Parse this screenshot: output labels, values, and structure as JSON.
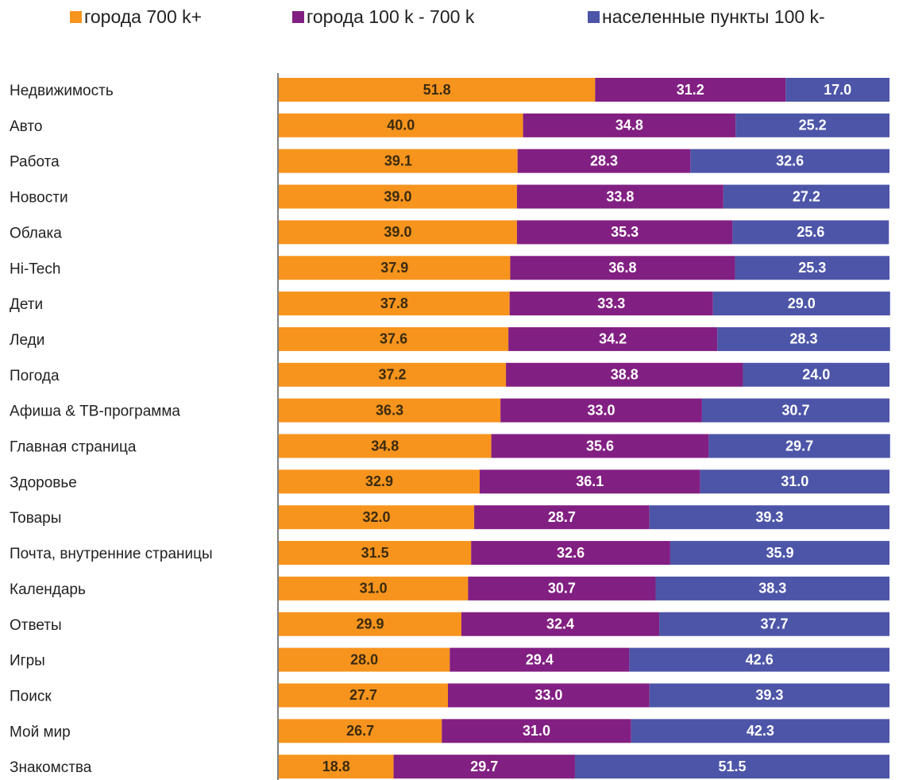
{
  "chart_data": {
    "type": "stacked-barh",
    "categories": [
      "Недвижимость",
      "Авто",
      "Работа",
      "Новости",
      "Облака",
      "Hi-Tech",
      "Дети",
      "Леди",
      "Погода",
      "Афиша & ТВ-программа",
      "Главная страница",
      "Здоровье",
      "Товары",
      "Почта, внутренние страницы",
      "Календарь",
      "Ответы",
      "Игры",
      "Поиск",
      "Мой мир",
      "Знакомства"
    ],
    "series": [
      {
        "name": "города 700 k+",
        "color": "#f7941d",
        "label_color": "#3b2b10",
        "values": [
          51.8,
          40,
          39.1,
          39,
          39,
          37.9,
          37.8,
          37.6,
          37.2,
          36.3,
          34.8,
          32.9,
          32,
          31.5,
          31,
          29.9,
          28,
          27.7,
          26.7,
          18.8
        ],
        "value_labels": [
          "51.8",
          "40.0",
          "39.1",
          "39.0",
          "39.0",
          "37.9",
          "37.8",
          "37.6",
          "37.2",
          "36.3",
          "34.8",
          "32.9",
          "32.0",
          "31.5",
          "31.0",
          "29.9",
          "28.0",
          "27.7",
          "26.7",
          "18.8"
        ]
      },
      {
        "name": "города 100 k - 700 k",
        "color": "#821f82",
        "label_color": "#ffffff",
        "values": [
          31.2,
          34.8,
          28.3,
          33.8,
          35.3,
          36.8,
          33.3,
          34.2,
          38.8,
          33,
          35.6,
          36.1,
          28.7,
          32.6,
          30.7,
          32.4,
          29.4,
          33,
          31,
          29.7
        ],
        "value_labels": [
          "31.2",
          "34.8",
          "28.3",
          "33.8",
          "35.3",
          "36.8",
          "33.3",
          "34.2",
          "38.8",
          "33.0",
          "35.6",
          "36.1",
          "28.7",
          "32.6",
          "30.7",
          "32.4",
          "29.4",
          "33.0",
          "31.0",
          "29.7"
        ]
      },
      {
        "name": "населенные пункты 100 k-",
        "color": "#4d55a8",
        "label_color": "#ffffff",
        "values": [
          17,
          25.2,
          32.6,
          27.2,
          25.6,
          25.3,
          29,
          28.3,
          24,
          30.7,
          29.7,
          31,
          39.3,
          35.9,
          38.3,
          37.7,
          42.6,
          39.3,
          42.3,
          51.5
        ],
        "value_labels": [
          "17.0",
          "25.2",
          "32.6",
          "27.2",
          "25.6",
          "25.3",
          "29.0",
          "28.3",
          "24.0",
          "30.7",
          "29.7",
          "31.0",
          "39.3",
          "35.9",
          "38.3",
          "37.7",
          "42.6",
          "39.3",
          "42.3",
          "51.5"
        ]
      }
    ],
    "xlim": [
      0,
      100
    ]
  }
}
